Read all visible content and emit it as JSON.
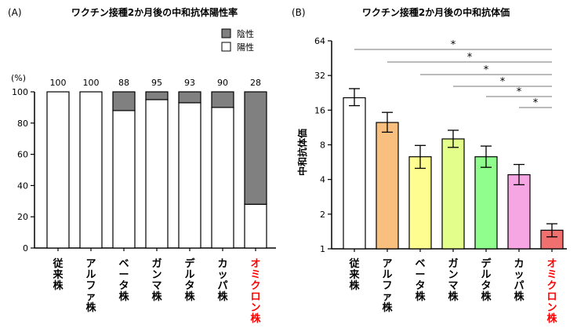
{
  "chart_data": [
    {
      "type": "bar",
      "panel_label": "(A)",
      "title": "ワクチン接種2か月後の中和抗体陽性率",
      "ylabel": "(%)",
      "ylim": [
        0,
        100
      ],
      "yticks": [
        0,
        20,
        40,
        60,
        80,
        100
      ],
      "categories": [
        "従来株",
        "アルファ株",
        "ベータ株",
        "ガンマ株",
        "デルタ株",
        "カッパ株",
        "オミクロン株"
      ],
      "category_colors": [
        "#000000",
        "#000000",
        "#000000",
        "#000000",
        "#000000",
        "#000000",
        "#ff0000"
      ],
      "stacked": true,
      "series": [
        {
          "name": "陽性",
          "values": [
            100,
            100,
            88,
            95,
            93,
            90,
            28
          ],
          "color": "#ffffff"
        },
        {
          "name": "陰性",
          "values": [
            0,
            0,
            12,
            5,
            7,
            10,
            72
          ],
          "color": "#808080"
        }
      ],
      "data_labels": [
        "100",
        "100",
        "88",
        "95",
        "93",
        "90",
        "28"
      ],
      "legend": {
        "placement": "top-right",
        "entries": [
          {
            "label": "陰性",
            "color": "#808080"
          },
          {
            "label": "陽性",
            "color": "#ffffff"
          }
        ]
      }
    },
    {
      "type": "bar",
      "panel_label": "(B)",
      "title": "ワクチン接種2か月後の中和抗体価",
      "ylabel": "中和抗体価",
      "yscale": "log2",
      "ylim": [
        1,
        64
      ],
      "yticks": [
        "1",
        "2",
        "4",
        "8",
        "16",
        "32",
        "64"
      ],
      "yticks_values": [
        1,
        2,
        4,
        8,
        16,
        32,
        64
      ],
      "categories": [
        "従来株",
        "アルファ株",
        "ベータ株",
        "ガンマ株",
        "デルタ株",
        "カッパ株",
        "オミクロン株"
      ],
      "category_colors": [
        "#000000",
        "#000000",
        "#000000",
        "#000000",
        "#000000",
        "#000000",
        "#ff0000"
      ],
      "values": [
        20.5,
        12.5,
        6.3,
        9.0,
        6.3,
        4.4,
        1.45
      ],
      "error_low": [
        17.5,
        10.3,
        5.0,
        7.6,
        5.1,
        3.6,
        1.27
      ],
      "error_high": [
        24.6,
        15.3,
        7.9,
        10.7,
        7.8,
        5.4,
        1.65
      ],
      "bar_colors": [
        "#ffffff",
        "#f9bf7e",
        "#fefe90",
        "#e4fe8c",
        "#8ffe8c",
        "#f7a6e4",
        "#f06f6f"
      ],
      "significance": [
        {
          "from": "従来株",
          "to": "オミクロン株",
          "label": "*"
        },
        {
          "from": "アルファ株",
          "to": "オミクロン株",
          "label": "*"
        },
        {
          "from": "ベータ株",
          "to": "オミクロン株",
          "label": "*"
        },
        {
          "from": "ガンマ株",
          "to": "オミクロン株",
          "label": "*"
        },
        {
          "from": "デルタ株",
          "to": "オミクロン株",
          "label": "*"
        },
        {
          "from": "カッパ株",
          "to": "オミクロン株",
          "label": "*"
        }
      ]
    }
  ]
}
